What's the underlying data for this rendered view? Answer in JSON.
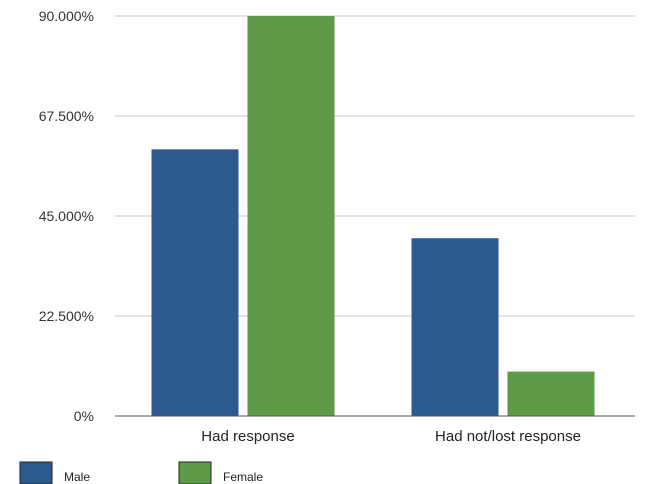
{
  "chart_data": {
    "type": "bar",
    "categories": [
      "Had response",
      "Had not/lost response"
    ],
    "series": [
      {
        "name": "Male",
        "values": [
          60,
          40
        ],
        "color": "#2c5a8c"
      },
      {
        "name": "Female",
        "values": [
          90,
          10
        ],
        "color": "#5e9a48"
      }
    ],
    "ylim": [
      0,
      90
    ],
    "yticks": [
      {
        "value": 0,
        "label": "0%"
      },
      {
        "value": 22.5,
        "label": "22.500%"
      },
      {
        "value": 45,
        "label": "45.000%"
      },
      {
        "value": 67.5,
        "label": "67.500%"
      },
      {
        "value": 90,
        "label": "90.000%"
      }
    ],
    "grid": true,
    "legend_position": "bottom-left",
    "title": "",
    "xlabel": "",
    "ylabel": ""
  }
}
